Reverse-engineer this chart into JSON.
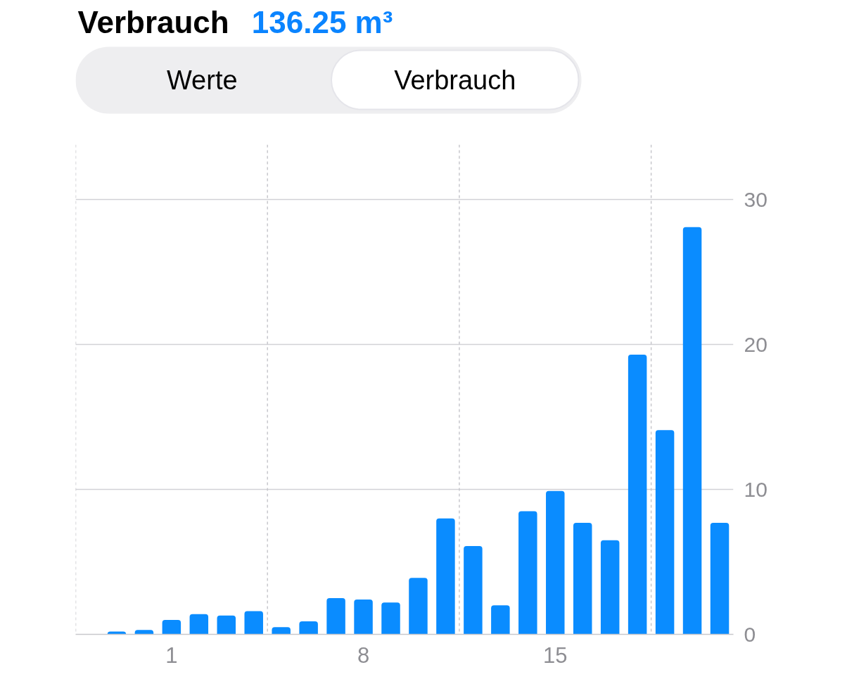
{
  "chart_data": {
    "type": "bar",
    "title": "Verbrauch",
    "subtitle": "136.25 m³",
    "annotations": [
      "Werte",
      "Verbrauch"
    ],
    "x": [
      -1,
      0,
      1,
      2,
      3,
      4,
      5,
      6,
      7,
      8,
      9,
      10,
      11,
      12,
      13,
      14,
      15,
      16,
      17,
      18,
      19,
      20,
      21
    ],
    "values": [
      0.2,
      0.3,
      1.0,
      1.4,
      1.3,
      1.6,
      0.5,
      0.9,
      2.5,
      2.4,
      2.2,
      3.9,
      8.0,
      6.1,
      2.0,
      8.5,
      9.9,
      7.7,
      6.5,
      19.3,
      14.1,
      28.1,
      7.7
    ],
    "color": "#0a8cff",
    "xlim": [
      -2.5,
      21.5
    ],
    "xticks": [
      1,
      8,
      15
    ],
    "ylim": [
      0,
      33.8
    ],
    "yticks": [
      0,
      10,
      20,
      30
    ],
    "grid": "y",
    "ref_lines": [
      {
        "axis": "x",
        "value": -2.5,
        "color": "#c7c7cc",
        "line_style": "dashed"
      },
      {
        "axis": "x",
        "value": 4.5,
        "color": "#c7c7cc",
        "line_style": "dashed"
      },
      {
        "axis": "x",
        "value": 11.5,
        "color": "#c7c7cc",
        "line_style": "dashed"
      },
      {
        "axis": "x",
        "value": 18.5,
        "color": "#c7c7cc",
        "line_style": "dashed"
      }
    ]
  }
}
